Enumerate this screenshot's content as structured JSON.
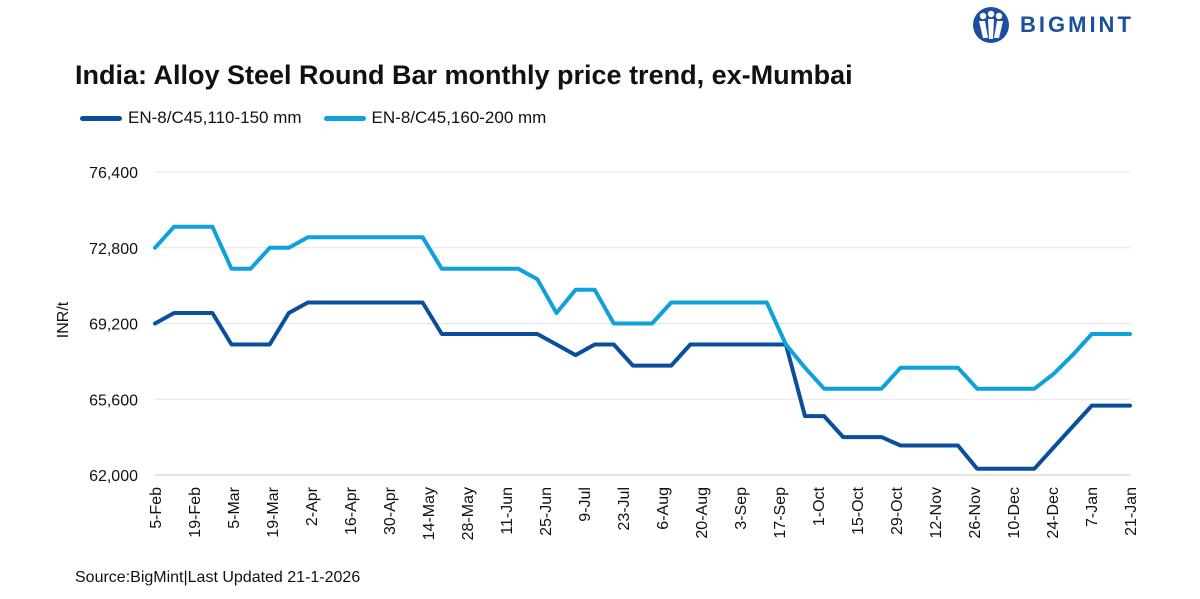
{
  "brand": {
    "name": "BIGMINT",
    "color": "#1d4fa0"
  },
  "chart_data": {
    "type": "line",
    "title": "India: Alloy Steel Round Bar monthly price trend, ex-Mumbai",
    "xlabel": "",
    "ylabel": "INR/t",
    "ylim": [
      62000,
      76400
    ],
    "yticks": [
      62000,
      65600,
      69200,
      72800,
      76400
    ],
    "ytick_labels": [
      "62,000",
      "65,600",
      "69,200",
      "72,800",
      "76,400"
    ],
    "x_tick_labels": [
      "5-Feb",
      "19-Feb",
      "5-Mar",
      "19-Mar",
      "2-Apr",
      "16-Apr",
      "30-Apr",
      "14-May",
      "28-May",
      "11-Jun",
      "25-Jun",
      "9-Jul",
      "23-Jul",
      "6-Aug",
      "20-Aug",
      "3-Sep",
      "17-Sep",
      "1-Oct",
      "15-Oct",
      "29-Oct",
      "12-Nov",
      "26-Nov",
      "10-Dec",
      "24-Dec",
      "7-Jan",
      "21-Jan"
    ],
    "grid": true,
    "legend": "top-left",
    "series": [
      {
        "name": "EN-8/C45,110-150 mm",
        "color": "#0b4f9c",
        "values": [
          69200,
          69700,
          69700,
          69700,
          68200,
          68200,
          68200,
          69700,
          70200,
          70200,
          70200,
          70200,
          70200,
          70200,
          70200,
          68700,
          68700,
          68700,
          68700,
          68700,
          68700,
          68200,
          67700,
          68200,
          68200,
          67200,
          67200,
          67200,
          68200,
          68200,
          68200,
          68200,
          68200,
          68200,
          64800,
          64800,
          63800,
          63800,
          63800,
          63400,
          63400,
          63400,
          63400,
          62300,
          62300,
          62300,
          62300,
          63300,
          64300,
          65300,
          65300,
          65300
        ]
      },
      {
        "name": "EN-8/C45,160-200 mm",
        "color": "#0fa1da",
        "values": [
          72800,
          73800,
          73800,
          73800,
          71800,
          71800,
          72800,
          72800,
          73300,
          73300,
          73300,
          73300,
          73300,
          73300,
          73300,
          71800,
          71800,
          71800,
          71800,
          71800,
          71300,
          69700,
          70800,
          70800,
          69200,
          69200,
          69200,
          70200,
          70200,
          70200,
          70200,
          70200,
          70200,
          68200,
          67100,
          66100,
          66100,
          66100,
          66100,
          67100,
          67100,
          67100,
          67100,
          66100,
          66100,
          66100,
          66100,
          66800,
          67700,
          68700,
          68700,
          68700
        ]
      }
    ]
  },
  "source": "Source:BigMint|Last Updated 21-1-2026"
}
